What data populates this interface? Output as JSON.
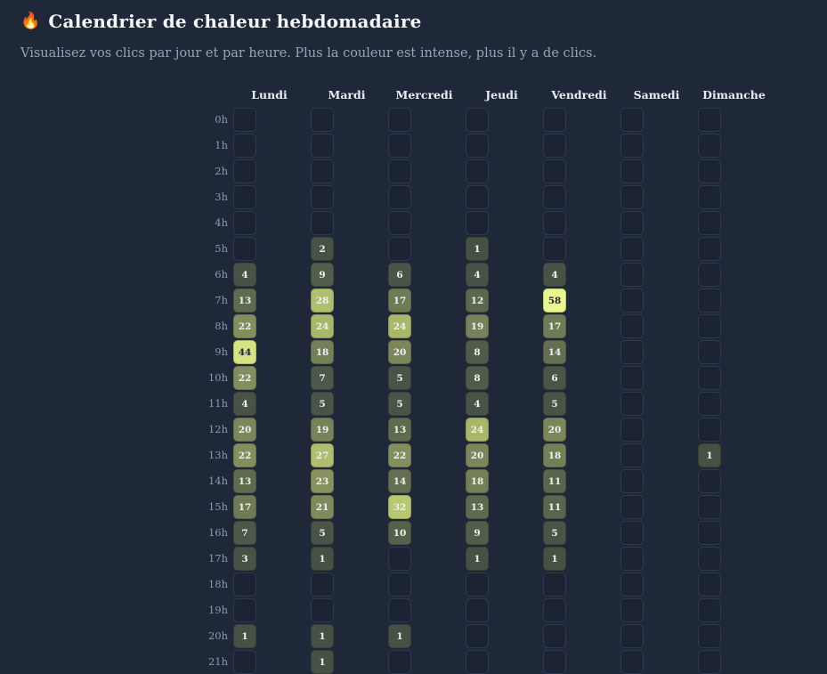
{
  "header": {
    "icon": "🔥",
    "title": "Calendrier de chaleur hebdomadaire",
    "subtitle": "Visualisez vos clics par jour et par heure. Plus la couleur est intense, plus il y a de clics."
  },
  "chart_data": {
    "type": "heatmap",
    "title": "Calendrier de chaleur hebdomadaire",
    "x_categories": [
      "Lundi",
      "Mardi",
      "Mercredi",
      "Jeudi",
      "Vendredi",
      "Samedi",
      "Dimanche"
    ],
    "y_categories": [
      "0h",
      "1h",
      "2h",
      "3h",
      "4h",
      "5h",
      "6h",
      "7h",
      "8h",
      "9h",
      "10h",
      "11h",
      "12h",
      "13h",
      "14h",
      "15h",
      "16h",
      "17h",
      "18h",
      "19h",
      "20h",
      "21h"
    ],
    "values": [
      [
        null,
        null,
        null,
        null,
        null,
        null,
        null
      ],
      [
        null,
        null,
        null,
        null,
        null,
        null,
        null
      ],
      [
        null,
        null,
        null,
        null,
        null,
        null,
        null
      ],
      [
        null,
        null,
        null,
        null,
        null,
        null,
        null
      ],
      [
        null,
        null,
        null,
        null,
        null,
        null,
        null
      ],
      [
        null,
        2,
        null,
        1,
        null,
        null,
        null
      ],
      [
        4,
        9,
        6,
        4,
        4,
        null,
        null
      ],
      [
        13,
        28,
        17,
        12,
        58,
        null,
        null
      ],
      [
        22,
        24,
        24,
        19,
        17,
        null,
        null
      ],
      [
        44,
        18,
        20,
        8,
        14,
        null,
        null
      ],
      [
        22,
        7,
        5,
        8,
        6,
        null,
        null
      ],
      [
        4,
        5,
        5,
        4,
        5,
        null,
        null
      ],
      [
        20,
        19,
        13,
        24,
        20,
        null,
        null
      ],
      [
        22,
        27,
        22,
        20,
        18,
        null,
        1
      ],
      [
        13,
        23,
        14,
        18,
        11,
        null,
        null
      ],
      [
        17,
        21,
        32,
        13,
        11,
        null,
        null
      ],
      [
        7,
        5,
        10,
        9,
        5,
        null,
        null
      ],
      [
        3,
        1,
        null,
        1,
        1,
        null,
        null
      ],
      [
        null,
        null,
        null,
        null,
        null,
        null,
        null
      ],
      [
        null,
        null,
        null,
        null,
        null,
        null,
        null
      ],
      [
        1,
        1,
        1,
        null,
        null,
        null,
        null
      ],
      [
        null,
        1,
        null,
        null,
        null,
        null,
        null
      ]
    ],
    "max_value": 58,
    "legend": "none",
    "grid": "off",
    "color_stops": [
      [
        0.0,
        "#454f42"
      ],
      [
        0.1,
        "#4a5447"
      ],
      [
        0.224,
        "#5f6b4e"
      ],
      [
        0.33,
        "#778359"
      ],
      [
        0.397,
        "#879260"
      ],
      [
        0.414,
        "#a9b76a"
      ],
      [
        0.552,
        "#b8c870"
      ],
      [
        0.759,
        "#d5e382"
      ],
      [
        1.0,
        "#eaf78f"
      ]
    ],
    "cell_text_light": "#eef1f0",
    "cell_text_dark": "#1e2636",
    "dark_text_threshold": 0.7
  },
  "style": {
    "page_bg": "#1f2839",
    "title_color": "#f4f6f8",
    "subtitle_color": "#98a4b5",
    "day_header_color": "#e9edf2",
    "hour_label_color": "#8d9aac",
    "empty_cell_bg": "#1c2433",
    "empty_cell_border": "#2d3951"
  }
}
